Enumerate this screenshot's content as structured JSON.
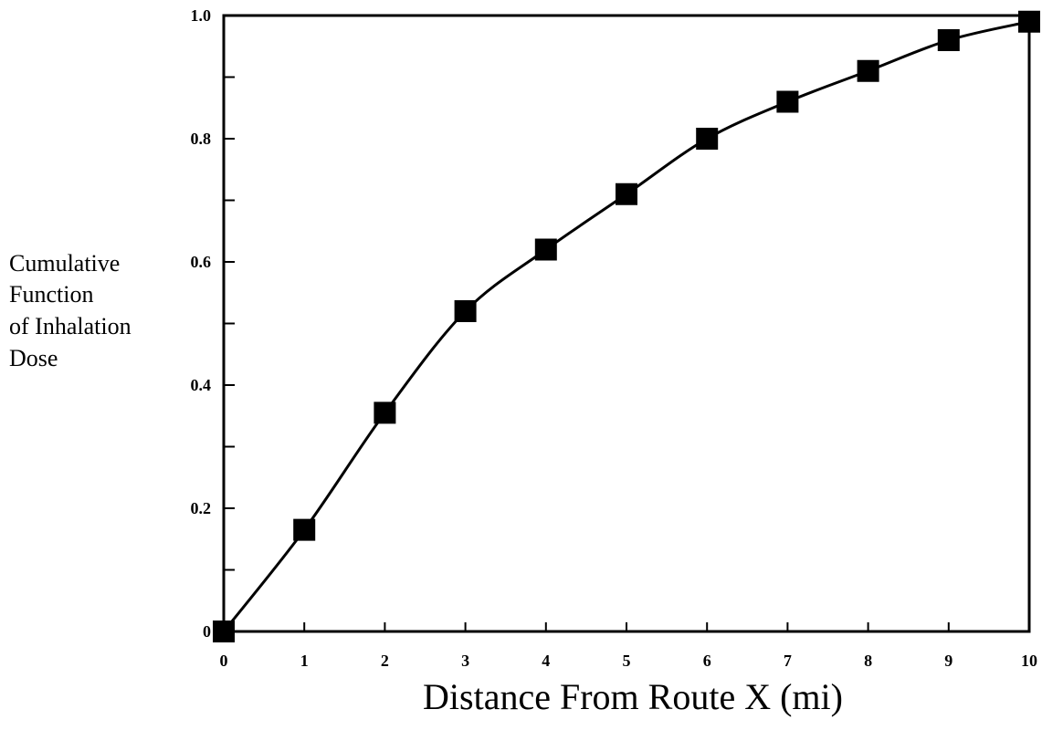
{
  "chart_data": {
    "type": "line",
    "title": "",
    "xlabel": "Distance From Route X (mi)",
    "ylabel_lines": [
      "Cumulative",
      "Function",
      "of Inhalation",
      "Dose"
    ],
    "xlim": [
      0,
      10
    ],
    "ylim": [
      0,
      1.0
    ],
    "x_ticks": [
      0,
      1,
      2,
      3,
      4,
      5,
      6,
      7,
      8,
      9,
      10
    ],
    "x_tick_labels": [
      "0",
      "1",
      "2",
      "3",
      "4",
      "5",
      "6",
      "7",
      "8",
      "9",
      "10"
    ],
    "y_ticks": [
      0,
      0.2,
      0.4,
      0.6,
      0.8,
      1.0
    ],
    "y_tick_labels": [
      "0",
      "0.2",
      "0.4",
      "0.6",
      "0.8",
      "1.0"
    ],
    "grid": false,
    "marker": "square",
    "series": [
      {
        "x": [
          0,
          1,
          2,
          3,
          4,
          5,
          6,
          7,
          8,
          9,
          10
        ],
        "values": [
          0.0,
          0.165,
          0.355,
          0.52,
          0.62,
          0.71,
          0.8,
          0.86,
          0.91,
          0.96,
          0.99
        ]
      }
    ],
    "colors": {
      "line": "#000000",
      "marker": "#000000",
      "axis": "#000000"
    }
  }
}
